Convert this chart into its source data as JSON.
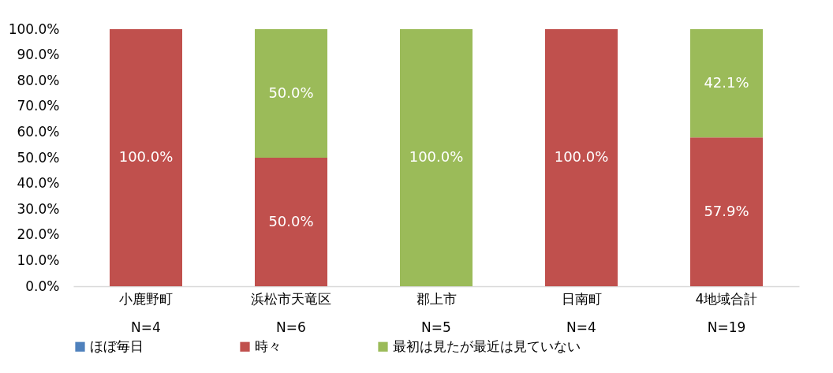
{
  "chart_data": {
    "type": "bar",
    "stacked": true,
    "categories": [
      "小鹿野町\nN=4",
      "浜松市天竜区\nN=6",
      "郡上市\nN=5",
      "日南町\nN=4",
      "4地域合計\nN=19"
    ],
    "series": [
      {
        "name": "ほぼ毎日",
        "color": "#4f81bd",
        "values": [
          0,
          0,
          0,
          0,
          0
        ],
        "value_labels": [
          null,
          null,
          null,
          null,
          null
        ]
      },
      {
        "name": "時々",
        "color": "#c0504d",
        "values": [
          100,
          50,
          0,
          100,
          57.9
        ],
        "value_labels": [
          "100.0%",
          "50.0%",
          null,
          "100.0%",
          "57.9%"
        ]
      },
      {
        "name": "最初は見たが最近は見ていない",
        "color": "#9bbb59",
        "values": [
          0,
          50,
          100,
          0,
          42.1
        ],
        "value_labels": [
          null,
          "50.0%",
          "100.0%",
          null,
          "42.1%"
        ]
      }
    ],
    "ylim": [
      0,
      100
    ],
    "yticks": [
      {
        "value": 0,
        "label": "0.0%"
      },
      {
        "value": 10,
        "label": "10.0%"
      },
      {
        "value": 20,
        "label": "20.0%"
      },
      {
        "value": 30,
        "label": "30.0%"
      },
      {
        "value": 40,
        "label": "40.0%"
      },
      {
        "value": 50,
        "label": "50.0%"
      },
      {
        "value": 60,
        "label": "60.0%"
      },
      {
        "value": 70,
        "label": "70.0%"
      },
      {
        "value": 80,
        "label": "80.0%"
      },
      {
        "value": 90,
        "label": "90.0%"
      },
      {
        "value": 100,
        "label": "100.0%"
      }
    ],
    "grid": false,
    "legend": "bottom"
  }
}
